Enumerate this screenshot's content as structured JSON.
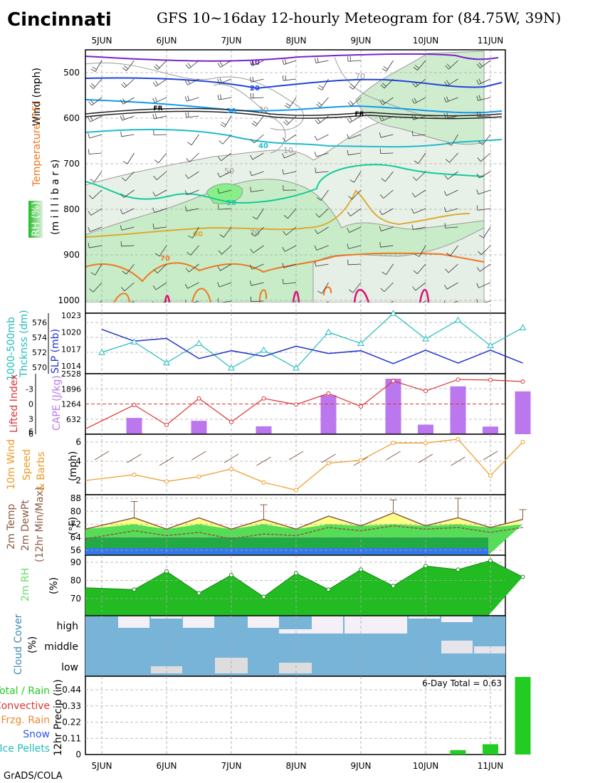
{
  "city": "Cincinnati",
  "title": "GFS 10~16day 12-hourly Meteogram for (84.75W, 39N)",
  "footer": "GrADS/COLA",
  "dates": [
    "5JUN",
    "6JUN",
    "7JUN",
    "8JUN",
    "9JUN",
    "10JUN",
    "11JUN"
  ],
  "colors": {
    "slp": "#2233cc",
    "thick": "#22bbbb",
    "li": "#dd3333",
    "cape": "#bb77ee",
    "wind": "#ee9922",
    "rh": "#22bb22",
    "cloud": "#77b4d8",
    "precip": "#22cc22"
  },
  "panel_labels": {
    "upper_wind": "Wind (mph)",
    "upper_temp": "Temperature (°F)",
    "upper_rh": "RH (%)",
    "upper_mb": "(m i l l i b a r s)",
    "thick": [
      "1000-500mb",
      "Thcknss (dm)"
    ],
    "slp": "SLP (mb)",
    "li": "Lifted Index",
    "cape": "CAPE (J/kg)",
    "wind10": [
      "10m Wind",
      "Speed",
      "& Barbs"
    ],
    "wind10_unit": "(mph)",
    "temp2m": [
      "2m Temp",
      "2m DewPt",
      "(12hr Min/Max)"
    ],
    "temp2m_unit": "(°F)",
    "rh2m": "2m RH",
    "rh2m_unit": "(%)",
    "cloud": "Cloud Cover",
    "cloud_unit": "(%)",
    "cloud_levels": [
      "high",
      "middle",
      "low"
    ],
    "precip_unit": "12hr Precip (in)",
    "precip_legend": [
      "Total / Rain",
      "Convective",
      "Frzg. Rain",
      "Snow",
      "Ice Pellets"
    ],
    "precip_total": "6-Day Total = 0.63"
  },
  "upper_contour_labels": {
    "wind": [
      "10",
      "20",
      "30",
      "40",
      "50",
      "60",
      "70"
    ],
    "rh": [
      "70",
      "30",
      "10",
      "50",
      "70"
    ],
    "front": "FR"
  },
  "chart_data": [
    {
      "type": "contour",
      "name": "upper_air",
      "y_ticks": [
        500,
        600,
        700,
        800,
        900,
        1000
      ],
      "ylim": [
        1000,
        450
      ],
      "x_ticks": [
        "5JUN",
        "6JUN",
        "7JUN",
        "8JUN",
        "9JUN",
        "10JUN",
        "11JUN"
      ]
    },
    {
      "type": "line",
      "name": "thickness_slp",
      "x": [
        "5JUN 00",
        "5JUN 12",
        "6JUN 00",
        "6JUN 12",
        "7JUN 00",
        "7JUN 12",
        "8JUN 00",
        "8JUN 12",
        "9JUN 00",
        "9JUN 12",
        "10JUN 00",
        "10JUN 12",
        "11JUN 00",
        "11JUN 12"
      ],
      "thick_ticks": [
        570,
        572,
        574,
        576
      ],
      "slp_ticks": [
        1014,
        1017,
        1020,
        1023
      ],
      "series": [
        {
          "name": "1000-500mb Thcknss (dm)",
          "values": [
            572.0,
            573.4,
            570.6,
            573.2,
            569.9,
            572.3,
            569.9,
            574.7,
            573.2,
            577.2,
            573.8,
            576.3,
            572.9,
            575.3
          ]
        },
        {
          "name": "SLP (mb)",
          "values": [
            1020.5,
            1018.4,
            1018.9,
            1015.3,
            1016.7,
            1015.7,
            1017.5,
            1016.2,
            1016.7,
            1014.4,
            1016.8,
            1014.5,
            1016.8,
            1014.5
          ]
        }
      ]
    },
    {
      "type": "bar",
      "name": "li_cape",
      "li_ticks": [
        -3,
        0,
        3,
        6
      ],
      "cape_ticks": [
        632,
        1264,
        1896,
        2528
      ],
      "li_values": [
        5.0,
        0.2,
        4.2,
        -1.1,
        3.6,
        -1.1,
        0.1,
        -2.1,
        0.5,
        -4.6,
        -2.6,
        -4.9,
        -4.8,
        -4.5
      ],
      "cape_values": [
        0,
        680,
        0,
        560,
        0,
        330,
        0,
        1630,
        0,
        2320,
        400,
        2000,
        320,
        1790
      ]
    },
    {
      "type": "line",
      "name": "wind10m",
      "yticks": [
        2,
        4,
        6
      ],
      "values": [
        2.0,
        2.6,
        1.9,
        2.4,
        3.2,
        1.8,
        1.0,
        3.8,
        4.1,
        5.9,
        5.9,
        6.3,
        2.5,
        6.0
      ]
    },
    {
      "type": "area",
      "name": "temp2m",
      "yticks": [
        56,
        64,
        72,
        80,
        88
      ],
      "temp": [
        69,
        76,
        69,
        76,
        69,
        75,
        69,
        77,
        71,
        79,
        71,
        76,
        70,
        75
      ],
      "dewpt": [
        63,
        68,
        65,
        67,
        63,
        66,
        65,
        70,
        68,
        71,
        69,
        70,
        67,
        70
      ],
      "tmax": [
        null,
        86,
        null,
        null,
        null,
        84,
        null,
        null,
        null,
        87,
        null,
        88,
        null,
        81
      ]
    },
    {
      "type": "area",
      "name": "rh2m",
      "yticks": [
        70,
        80,
        90
      ],
      "values": [
        76,
        75,
        85,
        73,
        83,
        71,
        84,
        75,
        86,
        77,
        88,
        86,
        91,
        82
      ]
    },
    {
      "type": "heatmap",
      "name": "cloud",
      "levels": [
        "high",
        "middle",
        "low"
      ]
    },
    {
      "type": "bar",
      "name": "precip",
      "yticks": [
        0,
        0.11,
        0.22,
        0.33,
        0.44
      ],
      "values": [
        0,
        0,
        0,
        0,
        0,
        0,
        0,
        0,
        0,
        0,
        0,
        0.03,
        0.07,
        0.53
      ]
    }
  ]
}
